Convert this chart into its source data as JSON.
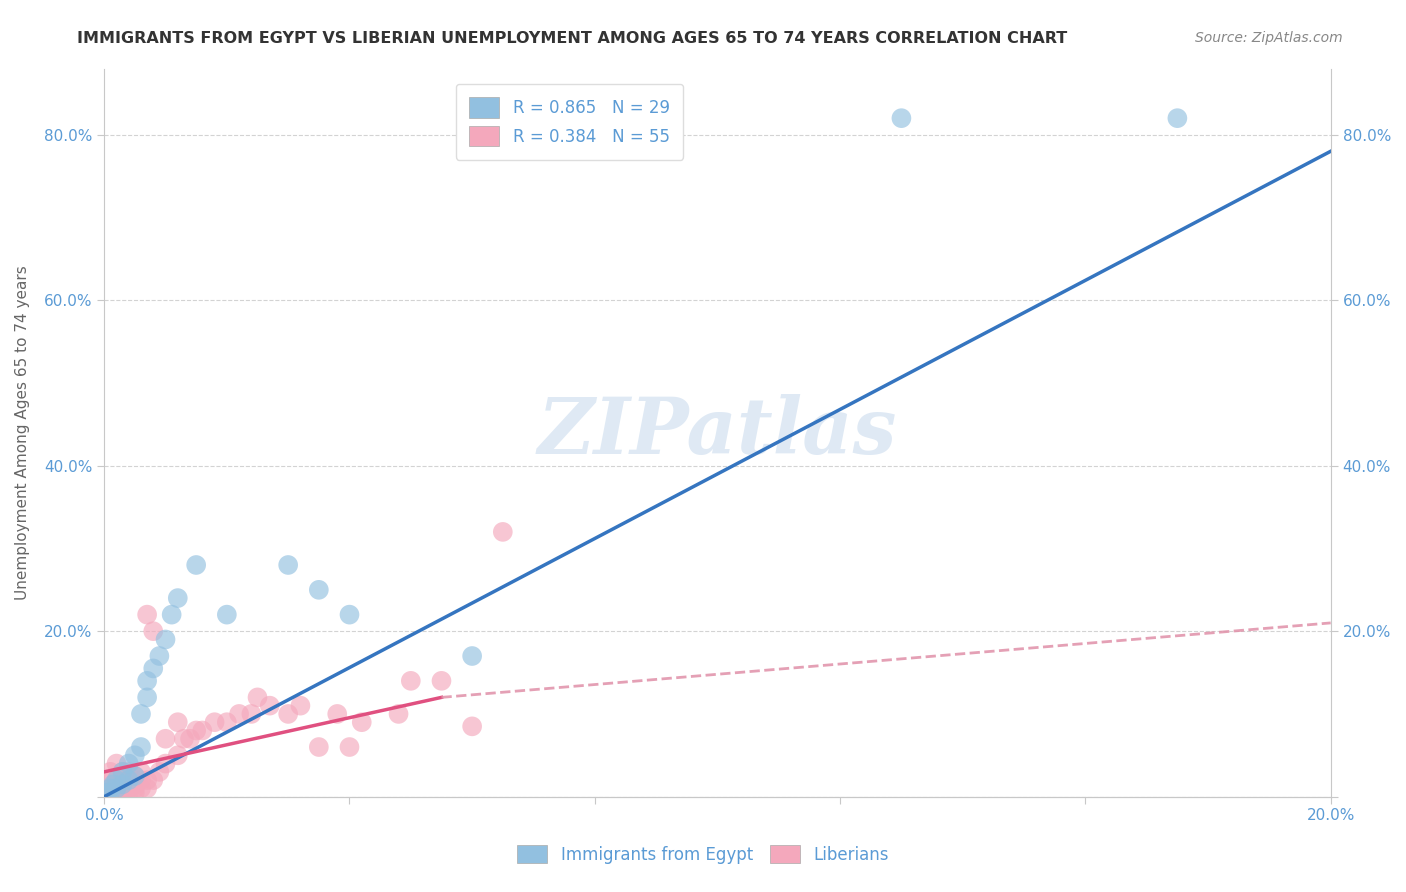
{
  "title": "IMMIGRANTS FROM EGYPT VS LIBERIAN UNEMPLOYMENT AMONG AGES 65 TO 74 YEARS CORRELATION CHART",
  "source": "Source: ZipAtlas.com",
  "ylabel": "Unemployment Among Ages 65 to 74 years",
  "xlim": [
    0.0,
    0.2
  ],
  "ylim": [
    0.0,
    0.88
  ],
  "yticks": [
    0.0,
    0.2,
    0.4,
    0.6,
    0.8
  ],
  "ytick_labels": [
    "",
    "20.0%",
    "40.0%",
    "60.0%",
    "80.0%"
  ],
  "xticks": [
    0.0,
    0.04,
    0.08,
    0.12,
    0.16,
    0.2
  ],
  "xtick_labels": [
    "0.0%",
    "",
    "",
    "",
    "",
    "20.0%"
  ],
  "watermark": "ZIPatlas",
  "blue_color": "#92c0e0",
  "pink_color": "#f4a8bc",
  "blue_line_color": "#3575c0",
  "pink_line_color_solid": "#e05080",
  "pink_line_color_dashed": "#e090a8",
  "R_blue": 0.865,
  "N_blue": 29,
  "R_pink": 0.384,
  "N_pink": 55,
  "egypt_points": [
    [
      0.0005,
      0.005
    ],
    [
      0.001,
      0.01
    ],
    [
      0.001,
      0.005
    ],
    [
      0.0015,
      0.015
    ],
    [
      0.002,
      0.01
    ],
    [
      0.002,
      0.02
    ],
    [
      0.003,
      0.015
    ],
    [
      0.003,
      0.03
    ],
    [
      0.004,
      0.02
    ],
    [
      0.004,
      0.04
    ],
    [
      0.005,
      0.025
    ],
    [
      0.005,
      0.05
    ],
    [
      0.006,
      0.06
    ],
    [
      0.006,
      0.1
    ],
    [
      0.007,
      0.12
    ],
    [
      0.007,
      0.14
    ],
    [
      0.008,
      0.155
    ],
    [
      0.009,
      0.17
    ],
    [
      0.01,
      0.19
    ],
    [
      0.011,
      0.22
    ],
    [
      0.012,
      0.24
    ],
    [
      0.015,
      0.28
    ],
    [
      0.02,
      0.22
    ],
    [
      0.03,
      0.28
    ],
    [
      0.035,
      0.25
    ],
    [
      0.04,
      0.22
    ],
    [
      0.06,
      0.17
    ],
    [
      0.13,
      0.82
    ],
    [
      0.175,
      0.82
    ]
  ],
  "liberia_points": [
    [
      0.0005,
      0.005
    ],
    [
      0.001,
      0.005
    ],
    [
      0.001,
      0.01
    ],
    [
      0.001,
      0.02
    ],
    [
      0.001,
      0.03
    ],
    [
      0.002,
      0.005
    ],
    [
      0.002,
      0.01
    ],
    [
      0.002,
      0.02
    ],
    [
      0.002,
      0.04
    ],
    [
      0.003,
      0.005
    ],
    [
      0.003,
      0.01
    ],
    [
      0.003,
      0.02
    ],
    [
      0.003,
      0.03
    ],
    [
      0.004,
      0.005
    ],
    [
      0.004,
      0.01
    ],
    [
      0.004,
      0.02
    ],
    [
      0.004,
      0.03
    ],
    [
      0.005,
      0.005
    ],
    [
      0.005,
      0.01
    ],
    [
      0.005,
      0.015
    ],
    [
      0.005,
      0.025
    ],
    [
      0.006,
      0.01
    ],
    [
      0.006,
      0.02
    ],
    [
      0.006,
      0.03
    ],
    [
      0.007,
      0.01
    ],
    [
      0.007,
      0.02
    ],
    [
      0.007,
      0.22
    ],
    [
      0.008,
      0.02
    ],
    [
      0.008,
      0.2
    ],
    [
      0.009,
      0.03
    ],
    [
      0.01,
      0.04
    ],
    [
      0.01,
      0.07
    ],
    [
      0.012,
      0.05
    ],
    [
      0.012,
      0.09
    ],
    [
      0.013,
      0.07
    ],
    [
      0.014,
      0.07
    ],
    [
      0.015,
      0.08
    ],
    [
      0.016,
      0.08
    ],
    [
      0.018,
      0.09
    ],
    [
      0.02,
      0.09
    ],
    [
      0.022,
      0.1
    ],
    [
      0.024,
      0.1
    ],
    [
      0.025,
      0.12
    ],
    [
      0.027,
      0.11
    ],
    [
      0.03,
      0.1
    ],
    [
      0.032,
      0.11
    ],
    [
      0.035,
      0.06
    ],
    [
      0.038,
      0.1
    ],
    [
      0.04,
      0.06
    ],
    [
      0.042,
      0.09
    ],
    [
      0.048,
      0.1
    ],
    [
      0.05,
      0.14
    ],
    [
      0.055,
      0.14
    ],
    [
      0.06,
      0.085
    ],
    [
      0.065,
      0.32
    ]
  ],
  "egypt_line": [
    [
      0.0,
      0.0
    ],
    [
      0.2,
      0.78
    ]
  ],
  "liberia_line_solid": [
    [
      0.0,
      0.03
    ],
    [
      0.055,
      0.12
    ]
  ],
  "liberia_line_dashed": [
    [
      0.055,
      0.12
    ],
    [
      0.2,
      0.21
    ]
  ],
  "background_color": "#ffffff",
  "grid_color": "#c8c8c8",
  "axis_color": "#c8c8c8",
  "tick_label_color": "#5b9bd5",
  "title_color": "#333333",
  "legend_label_color": "#5b9bd5"
}
